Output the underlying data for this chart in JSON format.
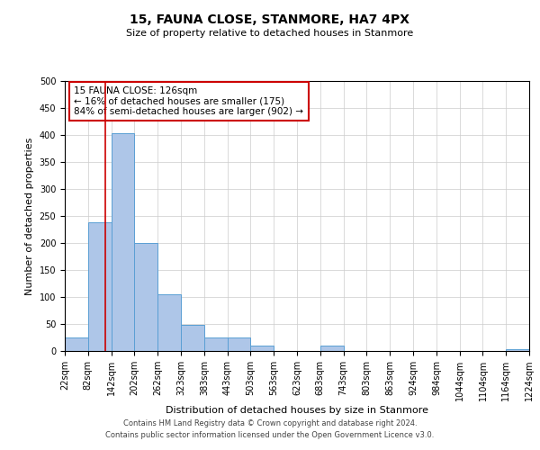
{
  "title": "15, FAUNA CLOSE, STANMORE, HA7 4PX",
  "subtitle": "Size of property relative to detached houses in Stanmore",
  "xlabel": "Distribution of detached houses by size in Stanmore",
  "ylabel": "Number of detached properties",
  "bin_edges": [
    22,
    82,
    142,
    202,
    262,
    323,
    383,
    443,
    503,
    563,
    623,
    683,
    743,
    803,
    863,
    924,
    984,
    1044,
    1104,
    1164,
    1224
  ],
  "bar_heights": [
    25,
    238,
    403,
    200,
    105,
    48,
    25,
    25,
    10,
    0,
    0,
    10,
    0,
    0,
    0,
    0,
    0,
    0,
    0,
    3
  ],
  "bar_color": "#aec6e8",
  "bar_edge_color": "#5a9fd4",
  "grid_color": "#cccccc",
  "background_color": "#ffffff",
  "property_size": 126,
  "red_line_color": "#cc0000",
  "annotation_line1": "15 FAUNA CLOSE: 126sqm",
  "annotation_line2": "← 16% of detached houses are smaller (175)",
  "annotation_line3": "84% of semi-detached houses are larger (902) →",
  "annotation_box_color": "#ffffff",
  "annotation_box_edge_color": "#cc0000",
  "footer_line1": "Contains HM Land Registry data © Crown copyright and database right 2024.",
  "footer_line2": "Contains public sector information licensed under the Open Government Licence v3.0.",
  "ylim": [
    0,
    500
  ],
  "yticks": [
    0,
    50,
    100,
    150,
    200,
    250,
    300,
    350,
    400,
    450,
    500
  ],
  "title_fontsize": 10,
  "subtitle_fontsize": 8,
  "xlabel_fontsize": 8,
  "ylabel_fontsize": 8,
  "tick_fontsize": 7,
  "annotation_fontsize": 7.5,
  "footer_fontsize": 6,
  "footer_color": "#444444"
}
